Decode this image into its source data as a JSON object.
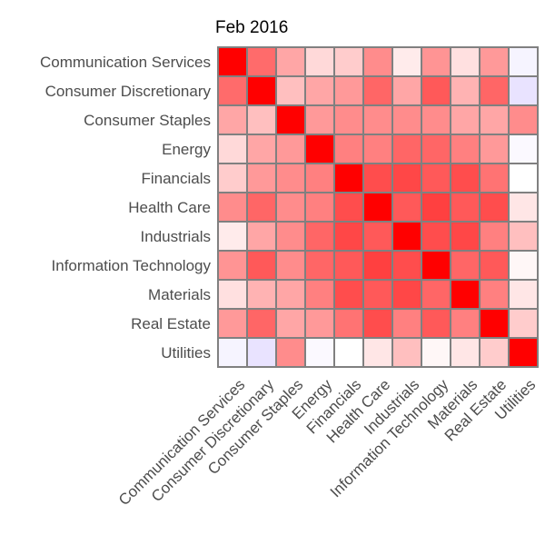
{
  "chart_data": {
    "type": "heatmap",
    "title": "Feb 2016",
    "xlabel": "",
    "ylabel": "",
    "categories": [
      "Communication Services",
      "Consumer Discretionary",
      "Consumer Staples",
      "Energy",
      "Financials",
      "Health Care",
      "Industrials",
      "Information Technology",
      "Materials",
      "Real Estate",
      "Utilities"
    ],
    "value_range": [
      -1,
      1
    ],
    "colors": {
      "high": "#ff0000",
      "mid": "#ffffff",
      "low": "#a890ff",
      "border": "#808080"
    },
    "matrix": [
      [
        1.0,
        0.58,
        0.35,
        0.15,
        0.2,
        0.45,
        0.08,
        0.42,
        0.12,
        0.4,
        -0.1
      ],
      [
        0.58,
        1.0,
        0.25,
        0.35,
        0.4,
        0.6,
        0.35,
        0.65,
        0.3,
        0.6,
        -0.25
      ],
      [
        0.35,
        0.25,
        1.0,
        0.4,
        0.45,
        0.45,
        0.45,
        0.45,
        0.35,
        0.35,
        0.45
      ],
      [
        0.15,
        0.35,
        0.4,
        1.0,
        0.5,
        0.5,
        0.6,
        0.6,
        0.5,
        0.4,
        -0.05
      ],
      [
        0.2,
        0.4,
        0.45,
        0.5,
        1.0,
        0.7,
        0.72,
        0.65,
        0.7,
        0.55,
        0.0
      ],
      [
        0.45,
        0.6,
        0.45,
        0.5,
        0.7,
        1.0,
        0.65,
        0.75,
        0.65,
        0.7,
        0.1
      ],
      [
        0.08,
        0.35,
        0.45,
        0.6,
        0.72,
        0.65,
        1.0,
        0.7,
        0.72,
        0.5,
        0.25
      ],
      [
        0.42,
        0.65,
        0.45,
        0.6,
        0.65,
        0.75,
        0.7,
        1.0,
        0.6,
        0.65,
        0.03
      ],
      [
        0.12,
        0.3,
        0.35,
        0.5,
        0.7,
        0.65,
        0.72,
        0.6,
        1.0,
        0.5,
        0.1
      ],
      [
        0.4,
        0.6,
        0.35,
        0.4,
        0.55,
        0.7,
        0.5,
        0.65,
        0.5,
        1.0,
        0.2
      ],
      [
        -0.1,
        -0.25,
        0.45,
        -0.05,
        0.0,
        0.1,
        0.25,
        0.03,
        0.1,
        0.2,
        1.0
      ]
    ]
  }
}
